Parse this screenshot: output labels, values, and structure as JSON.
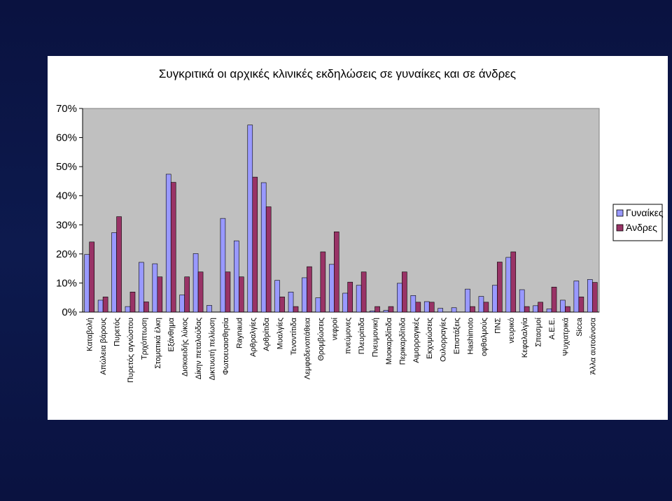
{
  "chart_data": {
    "type": "bar",
    "title": "Συγκριτικά οι αρχικές κλινικές εκδηλώσεις σε γυναίκες και σε άνδρες",
    "xlabel": "",
    "ylabel": "",
    "ylim": [
      0,
      70
    ],
    "yticks": [
      "0%",
      "10%",
      "20%",
      "30%",
      "40%",
      "50%",
      "60%",
      "70%"
    ],
    "grid": false,
    "legend": "right",
    "categories": [
      "Καταβολή",
      "Απώλεια βάρους",
      "Πυρετός",
      "Πυρετός αγνώστου",
      "Τριχόπτωση",
      "Στοματικά έλκη",
      "Εξάνθημα",
      "Δισκοειδής λύκος",
      "Δίκην πεταλούδας",
      "Δικτυωτή πελίωση",
      "Φωτοευαισθησία",
      "Raynaud",
      "Αρθραλγίες",
      "Αρθρίτιδα",
      "Μυαλγίες",
      "Τενοντίτιδα",
      "Λεμφαδενοπάθεια",
      "Θρομβώσεις",
      "νεφροί",
      "πνεύμονες",
      "Πλευρίτιδα",
      "Πνευμονική",
      "Μυοκαρδίτιδα",
      "Περικαρδίτιδα",
      "Αιμορραγικές",
      "Εκχυμώσεις",
      "Ουλορραγίες",
      "Επιστάξεις",
      "Hashimoto",
      "οφθαλμούς",
      "ΠΝΣ",
      "νευρικό",
      "Κεφαλαλγία",
      "Σπασμοί",
      "Α.Ε.Ε.",
      "Ψυχιατρικά",
      "Sicca",
      "Άλλα αυτοάνοσα"
    ],
    "series": [
      {
        "name": "Γυναίκες",
        "color": "#9999ff",
        "values": [
          19.8,
          4.1,
          27.3,
          1.9,
          17.1,
          16.6,
          47.4,
          5.9,
          20.1,
          2.3,
          32.2,
          24.5,
          64.3,
          44.5,
          10.9,
          6.9,
          11.8,
          4.9,
          16.4,
          6.5,
          9.2,
          0.4,
          0.6,
          9.9,
          5.7,
          3.6,
          1.3,
          1.5,
          7.9,
          5.4,
          9.2,
          18.8,
          7.7,
          2.2,
          1.1,
          4.1,
          10.7,
          11.2
        ]
      },
      {
        "name": "Άνδρες",
        "color": "#993366",
        "values": [
          24.1,
          5.2,
          32.8,
          6.9,
          3.5,
          12.1,
          44.6,
          12.1,
          13.8,
          0,
          13.8,
          12.1,
          46.4,
          36.2,
          5.2,
          1.9,
          15.6,
          20.7,
          27.6,
          10.3,
          13.8,
          1.9,
          1.9,
          13.8,
          3.4,
          3.4,
          0,
          0,
          1.9,
          3.4,
          17.2,
          20.7,
          1.9,
          3.4,
          8.6,
          1.9,
          5.2,
          10.2
        ]
      }
    ]
  }
}
